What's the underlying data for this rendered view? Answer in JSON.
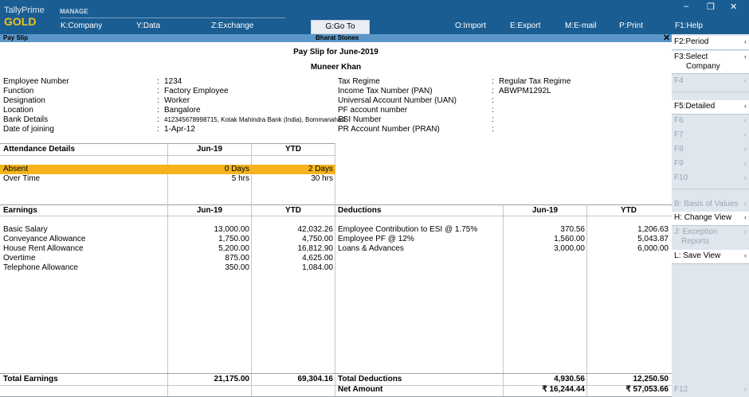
{
  "app": {
    "brand_name": "TallyPrime",
    "edition": "GOLD",
    "manage_label": "MANAGE",
    "menu": [
      {
        "key": "K",
        "label": ":Company"
      },
      {
        "key": "Y",
        "label": ":Data"
      },
      {
        "key": "Z",
        "label": ":Exchange"
      },
      {
        "key": "G",
        "label": ":Go To"
      },
      {
        "key": "O",
        "label": ":Import"
      },
      {
        "key": "E",
        "label": ":Export"
      },
      {
        "key": "M",
        "label": ":E-mail"
      },
      {
        "key": "P",
        "label": ":Print"
      },
      {
        "key": "F1",
        "label": ":Help"
      }
    ],
    "window_controls": {
      "minimize": "–",
      "restore": "❐",
      "close": "✕"
    }
  },
  "titlebar": {
    "left": "Pay Slip",
    "center": "Bharat Stones",
    "close": "✕"
  },
  "report": {
    "title": "Pay Slip for June-2019",
    "employee_name": "Muneer Khan",
    "left_details": [
      {
        "label": "Employee Number",
        "value": "1234"
      },
      {
        "label": "Function",
        "value": "Factory Employee"
      },
      {
        "label": "Designation",
        "value": "Worker"
      },
      {
        "label": "Location",
        "value": "Bangalore"
      },
      {
        "label": "Bank Details",
        "value": "412345678998715, Kotak Mahindra Bank (India), Bommanahalli"
      },
      {
        "label": "Date of joining",
        "value": "1-Apr-12"
      }
    ],
    "right_details": [
      {
        "label": "Tax Regime",
        "value": "Regular Tax Regime"
      },
      {
        "label": "Income Tax Number (PAN)",
        "value": "ABWPM1292L"
      },
      {
        "label": "Universal Account Number (UAN)",
        "value": ""
      },
      {
        "label": "PF account number",
        "value": ""
      },
      {
        "label": "ESI Number",
        "value": ""
      },
      {
        "label": "PR Account Number (PRAN)",
        "value": ""
      }
    ],
    "separator": ":",
    "attendance": {
      "header": "Attendance Details",
      "col_period": "Jun-19",
      "col_ytd": "YTD",
      "rows": [
        {
          "name": "Absent",
          "period": "0 Days",
          "ytd": "2 Days"
        },
        {
          "name": "Over Time",
          "period": "5 hrs",
          "ytd": "30 hrs"
        }
      ]
    },
    "earnings": {
      "header": "Earnings",
      "col_period": "Jun-19",
      "col_ytd": "YTD",
      "rows": [
        {
          "name": "Basic Salary",
          "period": "13,000.00",
          "ytd": "42,032.26"
        },
        {
          "name": "Conveyance Allowance",
          "period": "1,750.00",
          "ytd": "4,750.00"
        },
        {
          "name": "House Rent Allowance",
          "period": "5,200.00",
          "ytd": "16,812.90"
        },
        {
          "name": "Overtime",
          "period": "875.00",
          "ytd": "4,625.00"
        },
        {
          "name": "Telephone Allowance",
          "period": "350.00",
          "ytd": "1,084.00"
        }
      ],
      "total_label": "Total Earnings",
      "total_period": "21,175.00",
      "total_ytd": "69,304.16"
    },
    "deductions": {
      "header": "Deductions",
      "col_period": "Jun-19",
      "col_ytd": "YTD",
      "rows": [
        {
          "name": "Employee Contribution to ESI @ 1.75%",
          "period": "370.56",
          "ytd": "1,206.63"
        },
        {
          "name": "Employee PF @ 12%",
          "period": "1,560.00",
          "ytd": "5,043.87"
        },
        {
          "name": "Loans & Advances",
          "period": "3,000.00",
          "ytd": "6,000.00"
        }
      ],
      "total_label": "Total Deductions",
      "total_period": "4,930.56",
      "total_ytd": "12,250.50",
      "net_label": "Net Amount",
      "net_period": "₹ 16,244.44",
      "net_ytd": "₹ 57,053.66"
    }
  },
  "sidebar": {
    "buttons": [
      {
        "key": "F2",
        "label": ":Period",
        "state": "active"
      },
      {
        "key": "F3",
        "label": ":Select",
        "label2": "Company",
        "state": "active"
      },
      {
        "key": "F4",
        "label": "",
        "state": "dis"
      },
      {
        "key": "F5",
        "label": ":Detailed",
        "state": "active"
      },
      {
        "key": "F6",
        "label": "",
        "state": "dis"
      },
      {
        "key": "F7",
        "label": "",
        "state": "dis"
      },
      {
        "key": "F8",
        "label": "",
        "state": "dis"
      },
      {
        "key": "F9",
        "label": "",
        "state": "dis"
      },
      {
        "key": "F10",
        "label": "",
        "state": "dis"
      },
      {
        "key": "B",
        "label": ": Basis of Values",
        "state": "dis"
      },
      {
        "key": "H",
        "label": ": Change View",
        "state": "active"
      },
      {
        "key": "J",
        "label": ": Exception",
        "label2": "Reports",
        "state": "dis"
      },
      {
        "key": "L",
        "label": ": Save View",
        "state": "active"
      },
      {
        "key": "F12",
        "label": "",
        "state": "dis"
      }
    ],
    "arrow": "‹"
  }
}
